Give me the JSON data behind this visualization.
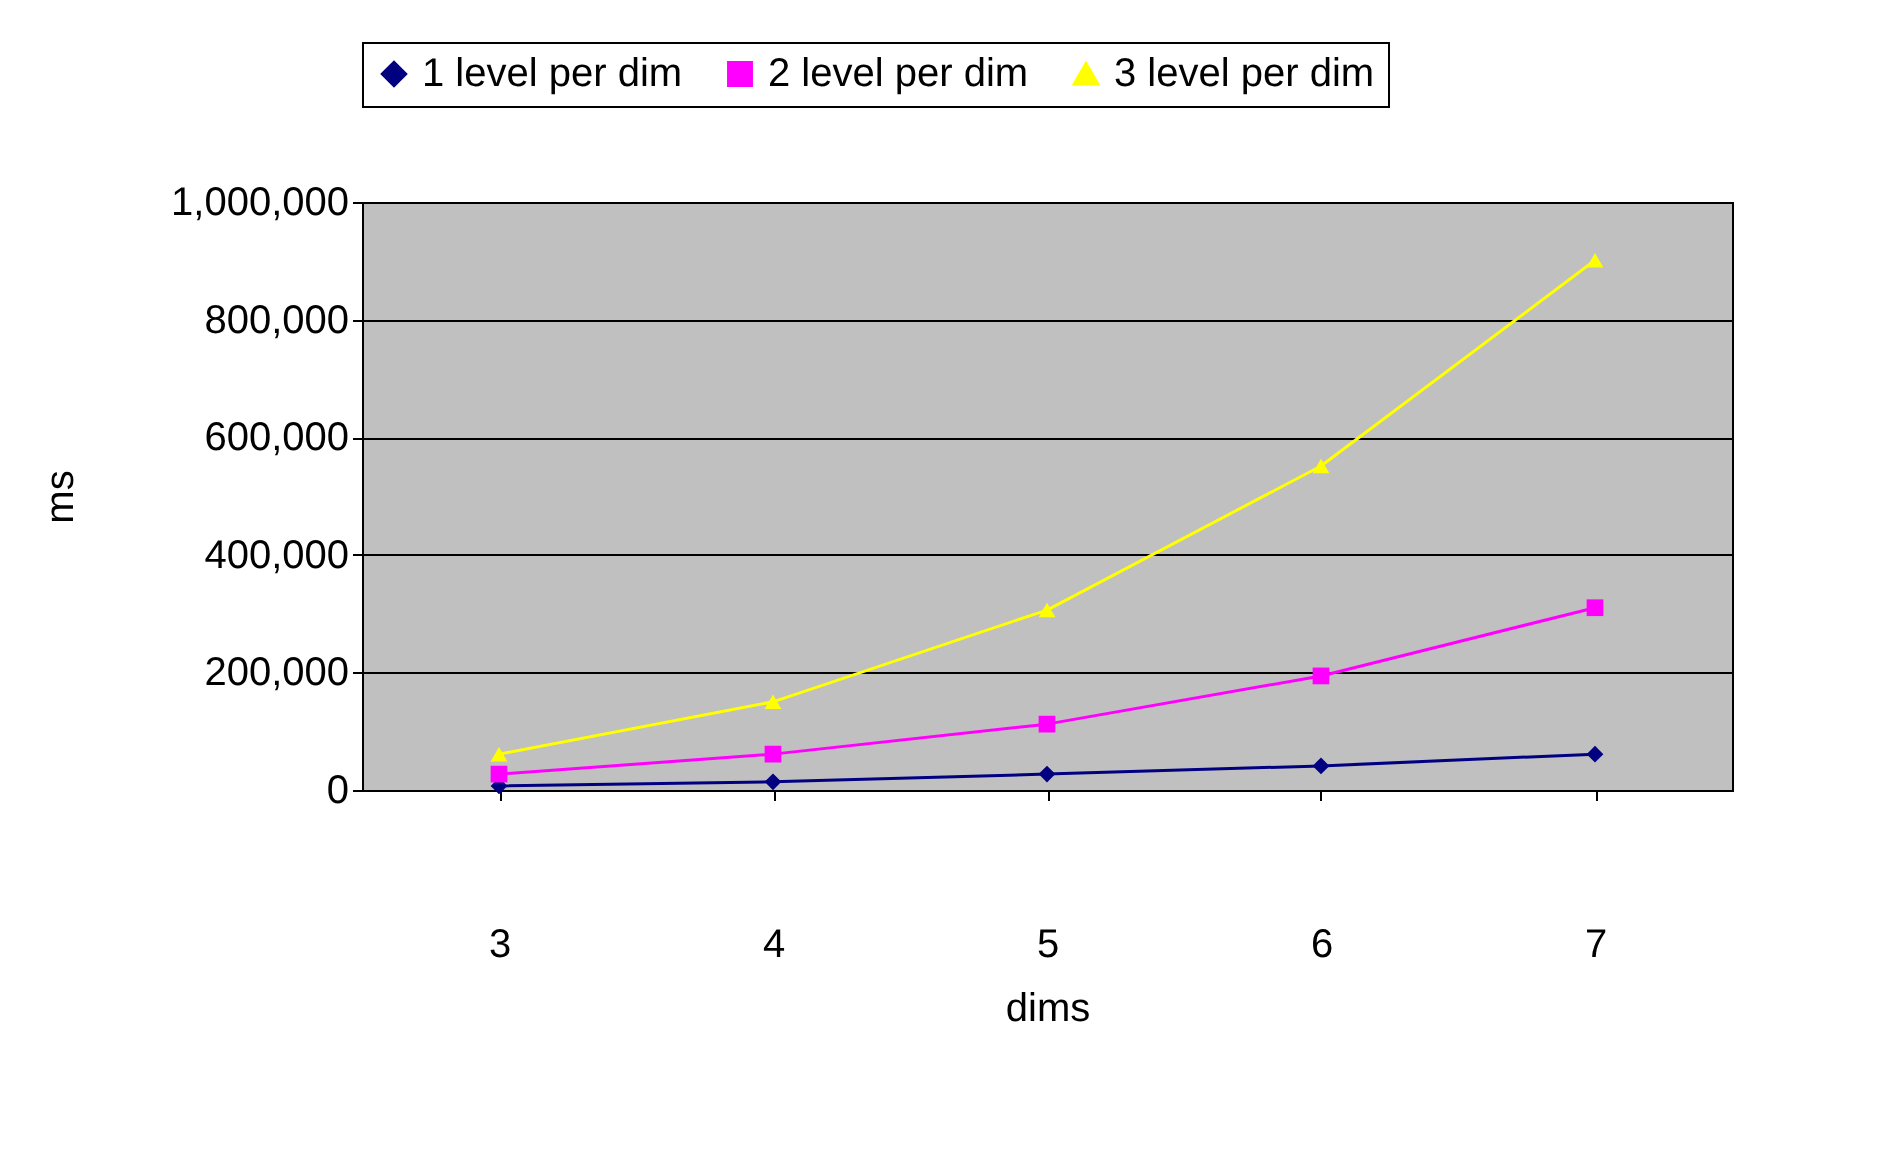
{
  "chart_data": {
    "type": "line",
    "xlabel": "dims",
    "ylabel": "ms",
    "categories": [
      "3",
      "4",
      "5",
      "6",
      "7"
    ],
    "series": [
      {
        "name": "1 level per dim",
        "color": "#000080",
        "marker": "diamond",
        "values": [
          7000,
          14000,
          27000,
          41000,
          61000
        ]
      },
      {
        "name": "2 level per dim",
        "color": "#ff00ff",
        "marker": "square",
        "values": [
          27000,
          61000,
          112000,
          194000,
          310000
        ]
      },
      {
        "name": "3 level per dim",
        "color": "#ffff00",
        "marker": "triangle",
        "values": [
          61000,
          150000,
          306000,
          551000,
          901000
        ]
      }
    ],
    "ylim": [
      0,
      1000000
    ],
    "yticks": [
      0,
      {
        "value": 200000,
        "label": "200,000"
      },
      {
        "value": 400000,
        "label": "400,000"
      },
      {
        "value": 600000,
        "label": "600,000"
      },
      {
        "value": 800000,
        "label": "800,000"
      },
      {
        "value": 1000000,
        "label": "1,000,000"
      }
    ],
    "line_style": "solid",
    "grid": "y",
    "legend": "top"
  }
}
